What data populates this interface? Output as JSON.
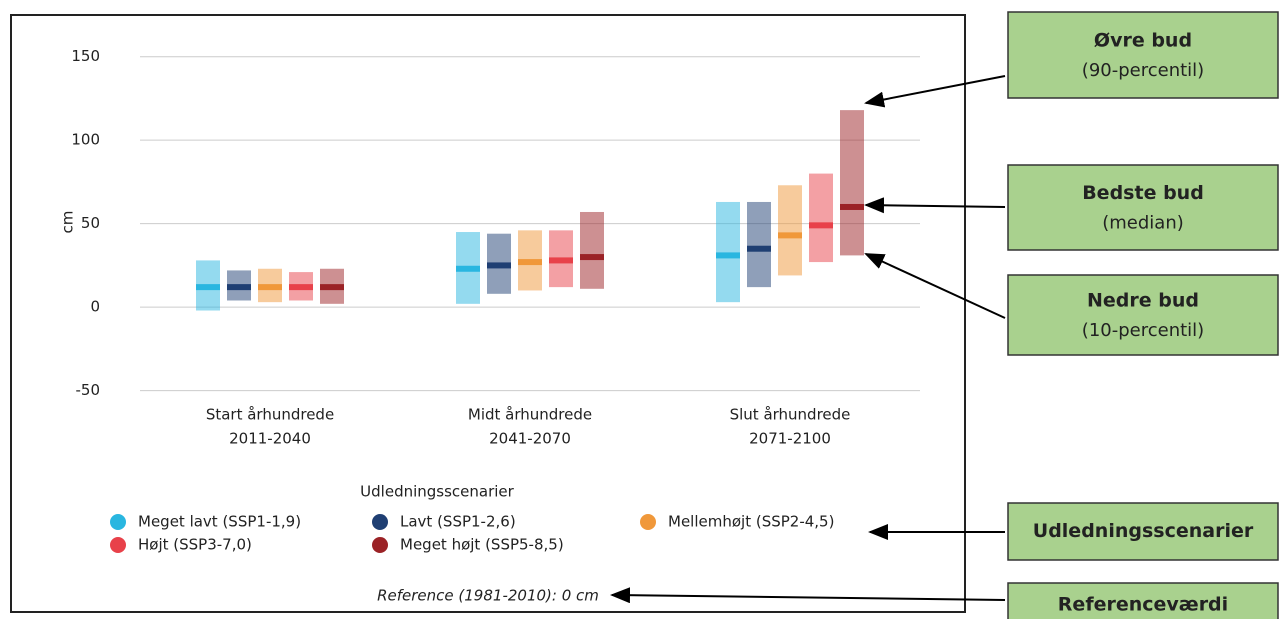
{
  "chart_data": {
    "type": "range",
    "y_label": "cm",
    "categories": [
      [
        "Start århundrede",
        "2011-2040"
      ],
      [
        "Midt århundrede",
        "2041-2070"
      ],
      [
        "Slut århundrede",
        "2071-2100"
      ]
    ],
    "series": [
      {
        "name": "Meget lavt (SSP1-1,9)",
        "color": "#29b6e0",
        "values": [
          12,
          23,
          31
        ],
        "low": [
          -2,
          2,
          3
        ],
        "high": [
          28,
          45,
          63
        ]
      },
      {
        "name": "Lavt (SSP1-2,6)",
        "color": "#1f3f73",
        "values": [
          12,
          25,
          35
        ],
        "low": [
          4,
          8,
          12
        ],
        "high": [
          22,
          44,
          63
        ]
      },
      {
        "name": "Mellemhøjt (SSP2-4,5)",
        "color": "#f0983a",
        "values": [
          12,
          27,
          43
        ],
        "low": [
          3,
          10,
          19
        ],
        "high": [
          23,
          46,
          73
        ]
      },
      {
        "name": "Højt (SSP3-7,0)",
        "color": "#e8414a",
        "values": [
          12,
          28,
          49
        ],
        "low": [
          4,
          12,
          27
        ],
        "high": [
          21,
          46,
          80
        ]
      },
      {
        "name": "Meget højt (SSP5-8,5)",
        "color": "#9b2226",
        "values": [
          12,
          30,
          60
        ],
        "low": [
          2,
          11,
          31
        ],
        "high": [
          23,
          57,
          118
        ]
      }
    ],
    "ylim": [
      -55,
      160
    ],
    "yticks": [
      -50,
      0,
      50,
      100,
      150
    ],
    "grid": true,
    "legend_title": "Udledningsscenarier",
    "reference": "Reference (1981-2010): 0 cm"
  },
  "annotations": [
    {
      "title": "Øvre bud",
      "subtitle": "(90-percentil)"
    },
    {
      "title": "Bedste bud",
      "subtitle": "(median)"
    },
    {
      "title": "Nedre bud",
      "subtitle": "(10-percentil)"
    },
    {
      "title": "Udledningsscenarier"
    },
    {
      "title": "Referenceværdi"
    }
  ]
}
